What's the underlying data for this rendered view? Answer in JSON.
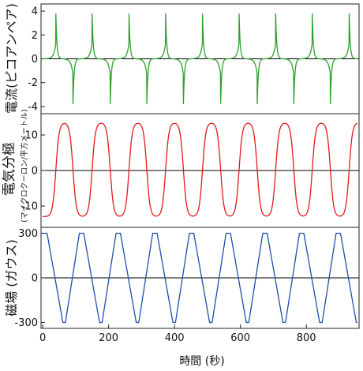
{
  "chart_data": [
    {
      "type": "line",
      "ylabel": "電流(ピコアンペア)",
      "yticks": [
        4,
        2,
        0,
        -2,
        -4
      ],
      "ylim": [
        -4.6,
        4.6
      ],
      "xlim": [
        -5,
        960
      ],
      "zero_line": true,
      "series": [
        {
          "color": "#2ca02c",
          "spike_times_pos": [
            40,
            150,
            262,
            373,
            485,
            596,
            707,
            818,
            930
          ],
          "spike_times_neg": [
            92,
            205,
            316,
            427,
            540,
            651,
            762,
            873
          ],
          "peak": 3.8,
          "trough": -3.8
        }
      ]
    },
    {
      "type": "line",
      "ylabel": "電気分極",
      "ylabel_sub": "(マイクロクーロン/平方メートル)",
      "yticks": [
        10,
        0,
        -10
      ],
      "ylim": [
        -16,
        16
      ],
      "xlim": [
        -5,
        960
      ],
      "zero_line": true,
      "series": [
        {
          "color": "#e31a1c",
          "high": 13.5,
          "low": -13,
          "rise_times": [
            40,
            150,
            262,
            373,
            485,
            596,
            707,
            818,
            930
          ],
          "fall_times": [
            92,
            205,
            316,
            427,
            540,
            651,
            762,
            873
          ]
        }
      ]
    },
    {
      "type": "line",
      "ylabel": "磁場 (ガウス)",
      "yticks": [
        300,
        0,
        -300
      ],
      "ylim": [
        -340,
        340
      ],
      "xlim": [
        -5,
        960
      ],
      "zero_line": true,
      "series": [
        {
          "color": "#1f4ea8",
          "max": 300,
          "min": -300,
          "period": 111.3,
          "start": 0
        }
      ]
    }
  ],
  "xaxis": {
    "label": "時間 (秒)",
    "ticks": [
      0,
      200,
      400,
      600,
      800
    ]
  }
}
